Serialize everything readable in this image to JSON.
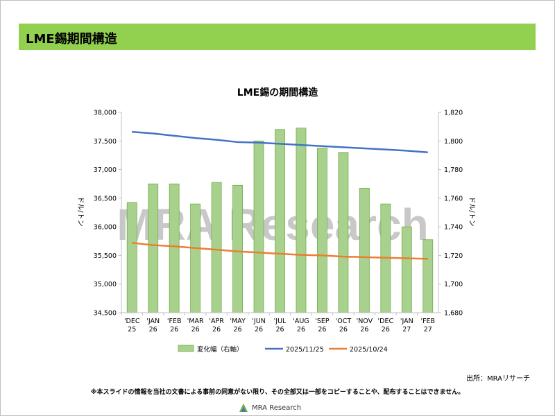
{
  "header": {
    "title": "LME錫期間構造"
  },
  "chart_data": {
    "type": "bar+line",
    "title": "LME錫の期間構造",
    "categories": [
      [
        "'DEC",
        "25"
      ],
      [
        "'JAN",
        "26"
      ],
      [
        "'FEB",
        "26"
      ],
      [
        "'MAR",
        "26"
      ],
      [
        "'APR",
        "26"
      ],
      [
        "'MAY",
        "26"
      ],
      [
        "'JUN",
        "26"
      ],
      [
        "'JUL",
        "26"
      ],
      [
        "'AUG",
        "26"
      ],
      [
        "'SEP",
        "26"
      ],
      [
        "'OCT",
        "26"
      ],
      [
        "'NOV",
        "26"
      ],
      [
        "'DEC",
        "26"
      ],
      [
        "'JAN",
        "27"
      ],
      [
        "'FEB",
        "27"
      ]
    ],
    "y_left": {
      "label": "ドル/トン",
      "min": 34500,
      "max": 38000,
      "step": 500,
      "ticks": [
        "34,500",
        "35,000",
        "35,500",
        "36,000",
        "36,500",
        "37,000",
        "37,500",
        "38,000"
      ]
    },
    "y_right": {
      "label": "ドル/トン",
      "min": 1680,
      "max": 1820,
      "step": 20,
      "ticks": [
        "1,680",
        "1,700",
        "1,720",
        "1,740",
        "1,760",
        "1,780",
        "1,800",
        "1,820"
      ]
    },
    "series": [
      {
        "name": "変化幅（右軸）",
        "kind": "bar",
        "axis": "right",
        "color": "#a9d18e",
        "edge": "#70ad47",
        "values": [
          1757,
          1770,
          1770,
          1756,
          1771,
          1769,
          1800,
          1808,
          1809,
          1795,
          1792,
          1767,
          1756,
          1740,
          1731
        ]
      },
      {
        "name": "2025/11/25",
        "kind": "line",
        "axis": "left",
        "color": "#4472c4",
        "values": [
          37660,
          37630,
          37590,
          37550,
          37520,
          37480,
          37470,
          37450,
          37430,
          37410,
          37390,
          37370,
          37350,
          37330,
          37300
        ]
      },
      {
        "name": "2025/10/24",
        "kind": "line",
        "axis": "left",
        "color": "#ed7d31",
        "values": [
          35720,
          35680,
          35660,
          35630,
          35600,
          35570,
          35550,
          35530,
          35510,
          35500,
          35480,
          35470,
          35460,
          35450,
          35440
        ]
      }
    ],
    "watermark": "MRA Research",
    "grid": false,
    "legend_position": "bottom"
  },
  "source": "出所：MRAリサーチ",
  "footer": {
    "note": "※本スライドの情報を当社の文書による事前の同意がない限り、その全部又は一部をコピーすることや、配布することはできません。",
    "logo_text": "MRA Research"
  }
}
